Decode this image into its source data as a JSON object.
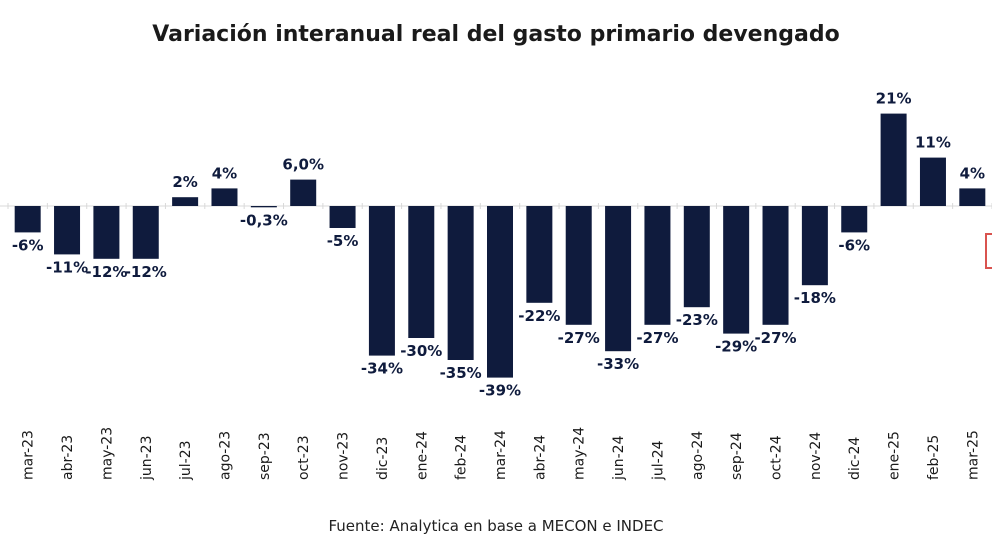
{
  "chart_data": {
    "type": "bar",
    "title": "Variación interanual real del gasto primario devengado",
    "source": "Fuente: Analytica en base a MECON e INDEC",
    "xlabel": "",
    "ylabel": "",
    "ylim": [
      -40,
      22
    ],
    "categories": [
      "mar-23",
      "abr-23",
      "may-23",
      "jun-23",
      "jul-23",
      "ago-23",
      "sep-23",
      "oct-23",
      "nov-23",
      "dic-23",
      "ene-24",
      "feb-24",
      "mar-24",
      "abr-24",
      "may-24",
      "jun-24",
      "jul-24",
      "ago-24",
      "sep-24",
      "oct-24",
      "nov-24",
      "dic-24",
      "ene-25",
      "feb-25",
      "mar-25"
    ],
    "values": [
      -6,
      -11,
      -12,
      -12,
      2,
      4,
      -0.3,
      6.0,
      -5,
      -34,
      -30,
      -35,
      -39,
      -22,
      -27,
      -33,
      -27,
      -23,
      -29,
      -27,
      -18,
      -6,
      21,
      11,
      4
    ],
    "labels": [
      "-6%",
      "-11%",
      "-12%",
      "-12%",
      "2%",
      "4%",
      "-0,3%",
      "6,0%",
      "-5%",
      "-34%",
      "-30%",
      "-35%",
      "-39%",
      "-22%",
      "-27%",
      "-33%",
      "-27%",
      "-23%",
      "-29%",
      "-27%",
      "-18%",
      "-6%",
      "21%",
      "11%",
      "4%"
    ],
    "colors": {
      "bar": "#0f1b3d",
      "label": "#0f1b3d",
      "axis": "#d9d9d9"
    }
  }
}
